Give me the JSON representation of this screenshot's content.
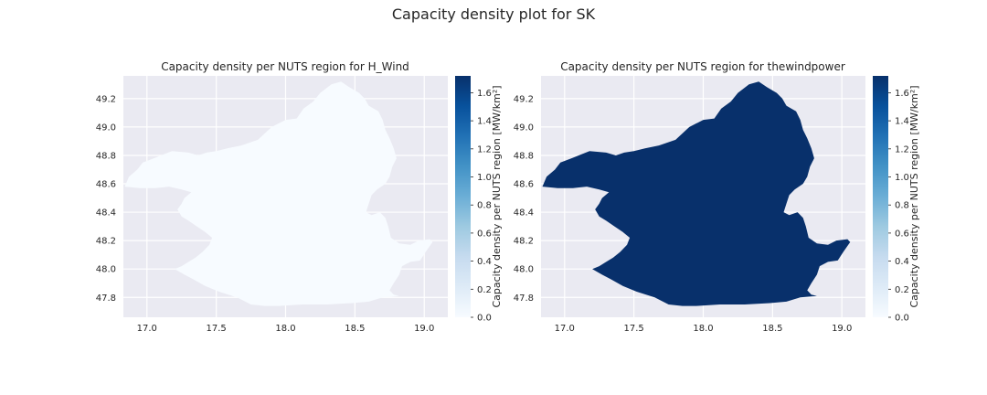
{
  "figure": {
    "suptitle": "Capacity density plot for SK"
  },
  "chart_data": [
    {
      "type": "choropleth",
      "title": "Capacity density per NUTS region for H_Wind",
      "xlim": [
        16.83,
        19.17
      ],
      "ylim": [
        47.66,
        49.36
      ],
      "xticks": [
        "17.0",
        "17.5",
        "18.0",
        "18.5",
        "19.0"
      ],
      "yticks": [
        "47.8",
        "48.0",
        "48.2",
        "48.4",
        "48.6",
        "48.8",
        "49.0",
        "49.2"
      ],
      "region": "SK",
      "value": 0.0,
      "fill_color": "#f7fbff",
      "colorbar": {
        "label": "Capacity density per NUTS region [MW/km²]",
        "range": [
          0.0,
          1.72
        ],
        "ticks": [
          "0.0",
          "0.2",
          "0.4",
          "0.6",
          "0.8",
          "1.0",
          "1.2",
          "1.4",
          "1.6"
        ],
        "colormap": "Blues"
      },
      "grid": true
    },
    {
      "type": "choropleth",
      "title": "Capacity density per NUTS region for thewindpower",
      "xlim": [
        16.83,
        19.17
      ],
      "ylim": [
        47.66,
        49.36
      ],
      "xticks": [
        "17.0",
        "17.5",
        "18.0",
        "18.5",
        "19.0"
      ],
      "yticks": [
        "47.8",
        "48.0",
        "48.2",
        "48.4",
        "48.6",
        "48.8",
        "49.0",
        "49.2"
      ],
      "region": "SK",
      "value": 1.72,
      "fill_color": "#08306b",
      "colorbar": {
        "label": "Capacity density per NUTS region [MW/km²]",
        "range": [
          0.0,
          1.72
        ],
        "ticks": [
          "0.0",
          "0.2",
          "0.4",
          "0.6",
          "0.8",
          "1.0",
          "1.2",
          "1.4",
          "1.6"
        ],
        "colormap": "Blues"
      },
      "grid": true
    }
  ],
  "style": {
    "axes_bg": "#eaeaf2",
    "grid_color": "#ffffff"
  }
}
